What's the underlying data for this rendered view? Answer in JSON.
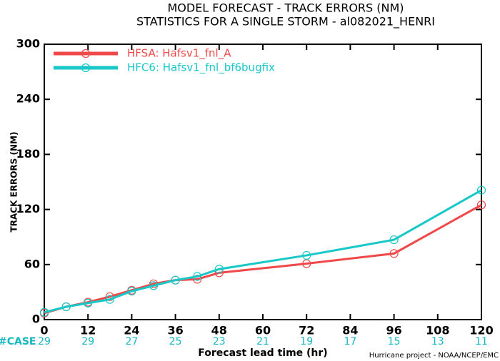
{
  "chart_data": {
    "type": "line",
    "title": "MODEL FORECAST - TRACK ERRORS (NM)",
    "subtitle": "STATISTICS FOR A SINGLE STORM - al082021_HENRI",
    "x_label": "Forecast lead time (hr)",
    "y_label": "TRACK ERRORS (NM)",
    "footnote": "Hurricane project - NOAA/NCEP/EMC",
    "case_label": "#CASE",
    "cases": [
      29,
      29,
      27,
      25,
      23,
      21,
      19,
      17,
      15,
      13,
      11
    ],
    "x": [
      0,
      6,
      12,
      18,
      24,
      30,
      36,
      42,
      48,
      72,
      96,
      120
    ],
    "series": [
      {
        "name": "HFSA: Hafsv1_fnl_A",
        "color": "#f04848",
        "values": [
          7,
          14,
          19,
          25,
          32,
          39,
          43,
          44,
          51,
          61,
          72,
          125
        ]
      },
      {
        "name": "HFC6: Hafsv1_fnl_bf6bugfix",
        "color": "#18c8c8",
        "values": [
          8,
          14,
          18,
          22,
          31,
          37,
          43,
          47,
          55,
          70,
          87,
          141
        ]
      }
    ],
    "xlim": [
      0,
      120
    ],
    "xticks": [
      0,
      12,
      24,
      36,
      48,
      60,
      72,
      84,
      96,
      108,
      120
    ],
    "ylim": [
      0,
      300
    ],
    "yticks": [
      0,
      60,
      120,
      180,
      240,
      300
    ]
  }
}
